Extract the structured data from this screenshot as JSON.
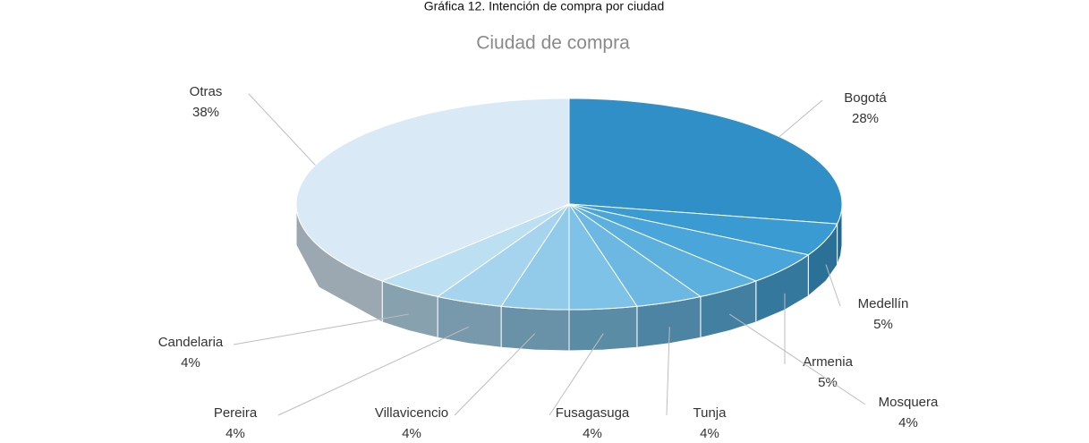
{
  "chart_data": {
    "type": "pie",
    "caption": "Gráfica 12. Intención de compra por ciudad",
    "title": "Ciudad de compra",
    "categories": [
      "Bogotá",
      "Medellín",
      "Armenia",
      "Mosquera",
      "Tunja",
      "Fusagasuga",
      "Villavicencio",
      "Pereira",
      "Candelaria",
      "Otras"
    ],
    "values": [
      28,
      5,
      5,
      4,
      4,
      4,
      4,
      4,
      4,
      38
    ],
    "value_labels": [
      "28%",
      "5%",
      "5%",
      "4%",
      "4%",
      "4%",
      "4%",
      "4%",
      "4%",
      "38%"
    ],
    "colors": [
      "#2f8fc6",
      "#3a9bd2",
      "#4aa6da",
      "#5cb0de",
      "#6cb8e2",
      "#7fc2e7",
      "#92cbea",
      "#a6d4ee",
      "#bcdff2",
      "#d9e9f6"
    ]
  }
}
